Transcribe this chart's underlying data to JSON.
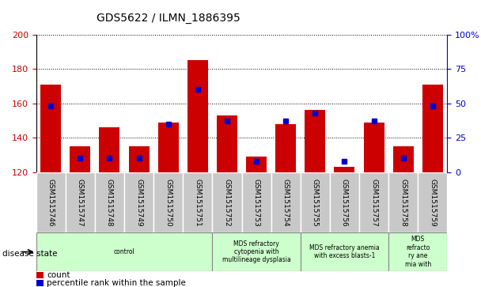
{
  "title": "GDS5622 / ILMN_1886395",
  "samples": [
    "GSM1515746",
    "GSM1515747",
    "GSM1515748",
    "GSM1515749",
    "GSM1515750",
    "GSM1515751",
    "GSM1515752",
    "GSM1515753",
    "GSM1515754",
    "GSM1515755",
    "GSM1515756",
    "GSM1515757",
    "GSM1515758",
    "GSM1515759"
  ],
  "counts": [
    171,
    135,
    146,
    135,
    149,
    185,
    153,
    129,
    148,
    156,
    123,
    149,
    135,
    171
  ],
  "percentiles": [
    48,
    10,
    10,
    10,
    35,
    60,
    37,
    8,
    37,
    43,
    8,
    37,
    10,
    48
  ],
  "y_min": 120,
  "y_max": 200,
  "left_ticks": [
    120,
    140,
    160,
    180,
    200
  ],
  "right_ticks": [
    0,
    25,
    50,
    75,
    100
  ],
  "bar_color": "#cc0000",
  "dot_color": "#0000cc",
  "groups": [
    {
      "label": "control",
      "start": 0,
      "end": 6
    },
    {
      "label": "MDS refractory\ncytopenia with\nmultilineage dysplasia",
      "start": 6,
      "end": 9
    },
    {
      "label": "MDS refractory anemia\nwith excess blasts-1",
      "start": 9,
      "end": 12
    },
    {
      "label": "MDS\nrefracto\nry ane\nmia with",
      "start": 12,
      "end": 14
    }
  ],
  "group_color": "#ccffcc",
  "legend_count_color": "#cc0000",
  "legend_pct_color": "#0000cc",
  "tick_bg_color": "#c8c8c8",
  "disease_state_label": "disease state"
}
